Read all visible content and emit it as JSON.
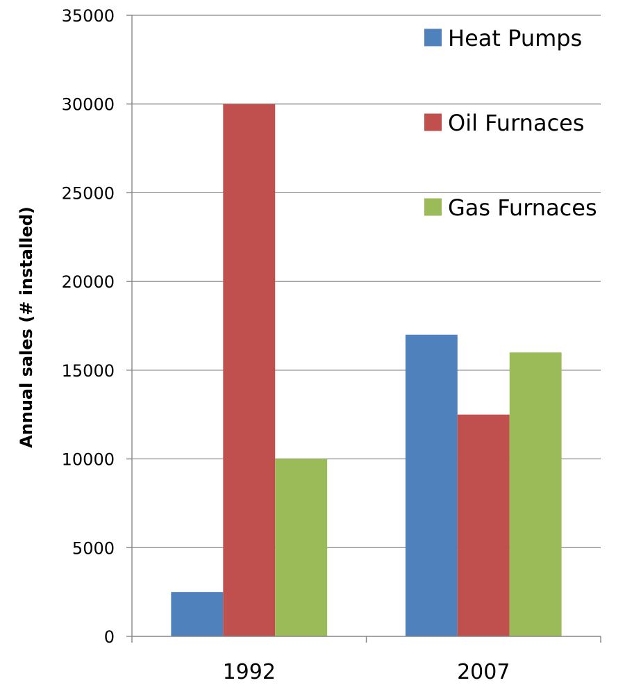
{
  "chart_data": {
    "type": "bar",
    "title": "",
    "xlabel": "",
    "ylabel": "Annual sales (# installed)",
    "categories": [
      "1992",
      "2007"
    ],
    "series": [
      {
        "name": "Heat Pumps",
        "color": "#4F81BD",
        "values": [
          2500,
          17000
        ]
      },
      {
        "name": "Oil Furnaces",
        "color": "#C0504D",
        "values": [
          30000,
          12500
        ]
      },
      {
        "name": "Gas Furnaces",
        "color": "#9BBB59",
        "values": [
          10000,
          16000
        ]
      }
    ],
    "ylim": [
      0,
      35000
    ],
    "yticks": [
      0,
      5000,
      10000,
      15000,
      20000,
      25000,
      30000,
      35000
    ],
    "grid": true,
    "legend_position": "top-right"
  }
}
